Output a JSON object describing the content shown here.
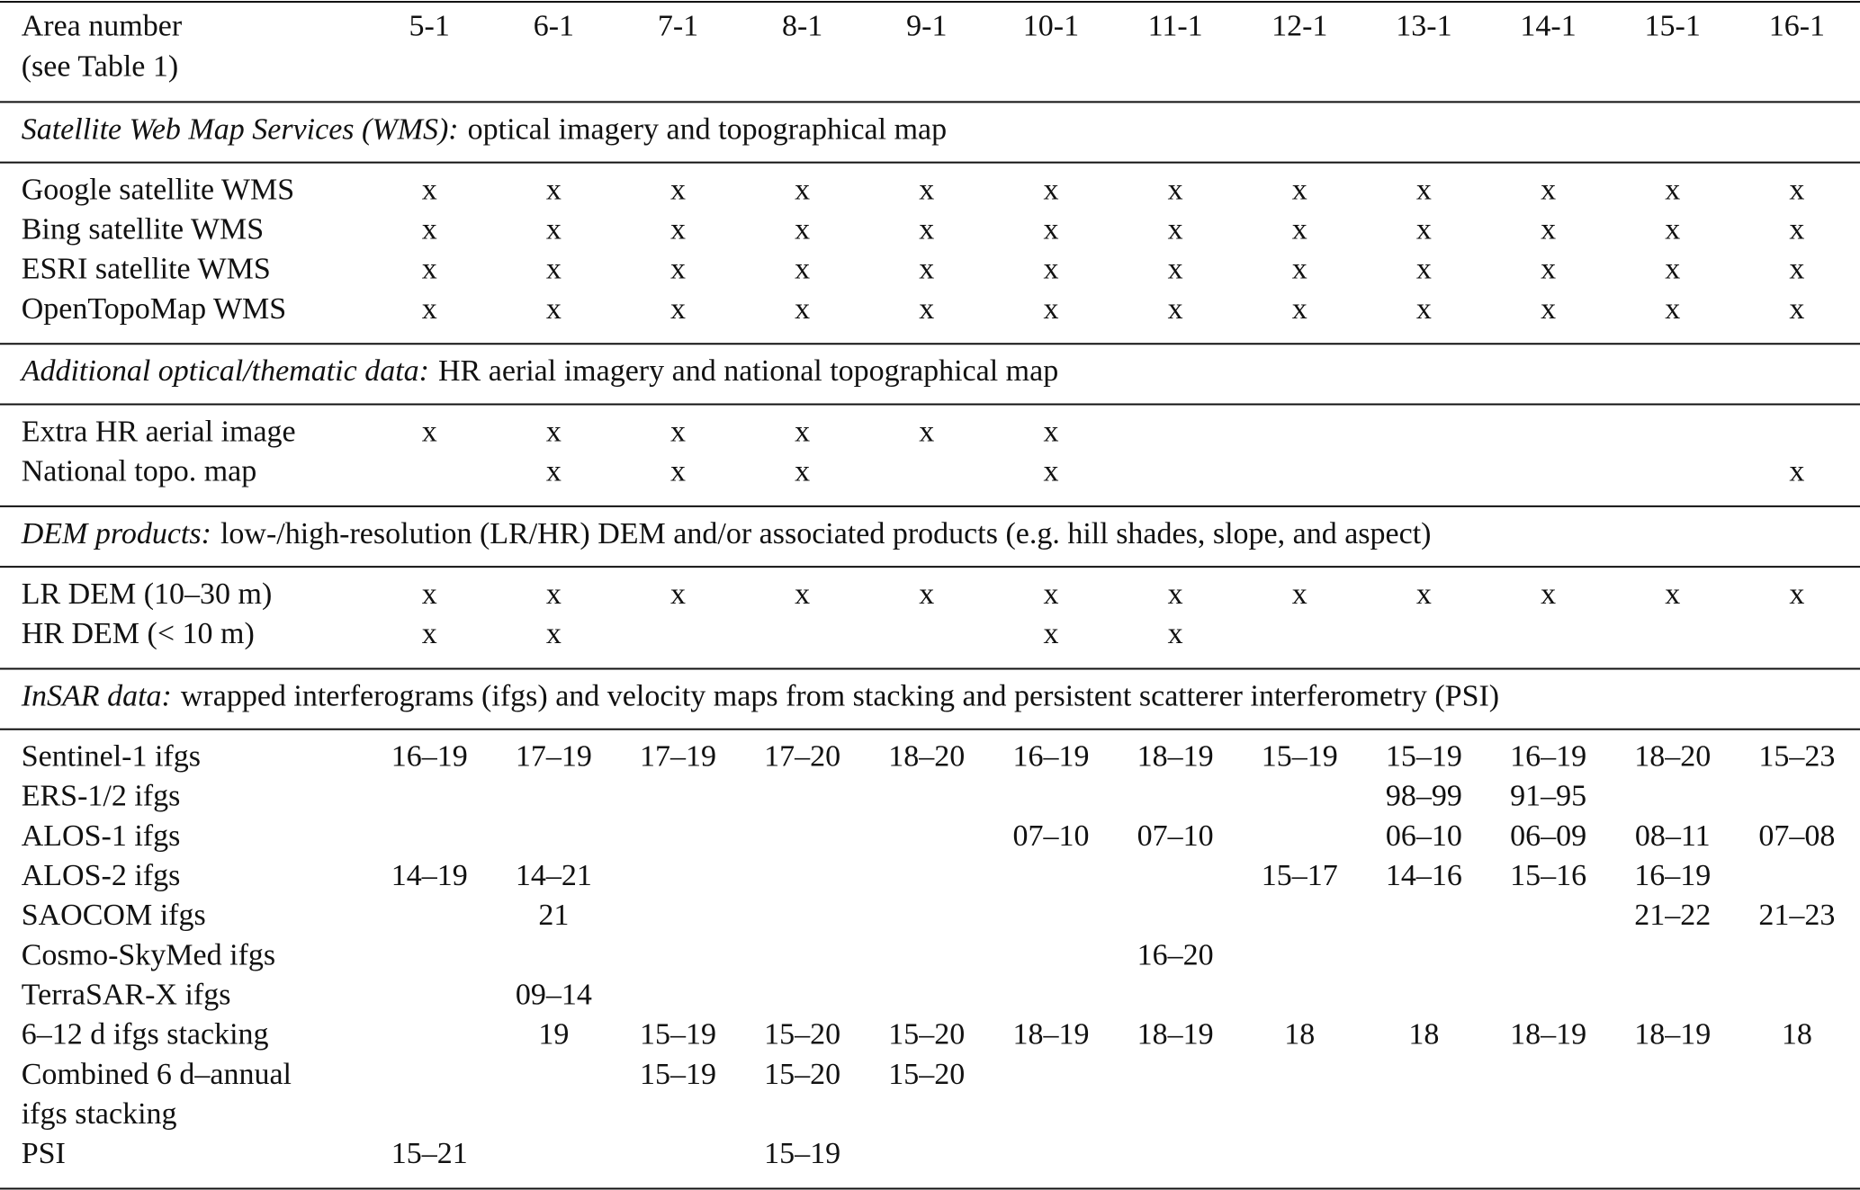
{
  "table": {
    "header": {
      "label": [
        "Area number",
        "(see Table 1)"
      ],
      "columns": [
        "5-1",
        "6-1",
        "7-1",
        "8-1",
        "9-1",
        "10-1",
        "11-1",
        "12-1",
        "13-1",
        "14-1",
        "15-1",
        "16-1"
      ]
    },
    "sections": [
      {
        "title_italic": "Satellite Web Map Services (WMS):",
        "title_rest": "optical imagery and topographical map",
        "rows": [
          {
            "label": "Google satellite WMS",
            "cells": [
              "x",
              "x",
              "x",
              "x",
              "x",
              "x",
              "x",
              "x",
              "x",
              "x",
              "x",
              "x"
            ]
          },
          {
            "label": "Bing satellite WMS",
            "cells": [
              "x",
              "x",
              "x",
              "x",
              "x",
              "x",
              "x",
              "x",
              "x",
              "x",
              "x",
              "x"
            ]
          },
          {
            "label": "ESRI satellite WMS",
            "cells": [
              "x",
              "x",
              "x",
              "x",
              "x",
              "x",
              "x",
              "x",
              "x",
              "x",
              "x",
              "x"
            ]
          },
          {
            "label": "OpenTopoMap WMS",
            "cells": [
              "x",
              "x",
              "x",
              "x",
              "x",
              "x",
              "x",
              "x",
              "x",
              "x",
              "x",
              "x"
            ]
          }
        ]
      },
      {
        "title_italic": "Additional optical/thematic data:",
        "title_rest": "HR aerial imagery and national topographical map",
        "rows": [
          {
            "label": "Extra HR aerial image",
            "cells": [
              "x",
              "x",
              "x",
              "x",
              "x",
              "x",
              null,
              null,
              null,
              null,
              null,
              null
            ]
          },
          {
            "label": "National topo. map",
            "cells": [
              null,
              "x",
              "x",
              "x",
              null,
              "x",
              null,
              null,
              null,
              null,
              null,
              "x"
            ]
          }
        ]
      },
      {
        "title_italic": "DEM products:",
        "title_rest": "low-/high-resolution (LR/HR) DEM and/or associated products (e.g. hill shades, slope, and aspect)",
        "rows": [
          {
            "label": "LR DEM (10–30 m)",
            "cells": [
              "x",
              "x",
              "x",
              "x",
              "x",
              "x",
              "x",
              "x",
              "x",
              "x",
              "x",
              "x"
            ]
          },
          {
            "label": "HR DEM (< 10 m)",
            "cells": [
              "x",
              "x",
              null,
              null,
              null,
              "x",
              "x",
              null,
              null,
              null,
              null,
              null
            ]
          }
        ]
      },
      {
        "title_italic": "InSAR data:",
        "title_rest": "wrapped interferograms (ifgs) and velocity maps from stacking and persistent scatterer interferometry (PSI)",
        "rows": [
          {
            "label": "Sentinel-1 ifgs",
            "cells": [
              "16–19",
              "17–19",
              "17–19",
              "17–20",
              "18–20",
              "16–19",
              "18–19",
              "15–19",
              "15–19",
              "16–19",
              "18–20",
              "15–23"
            ]
          },
          {
            "label": "ERS-1/2 ifgs",
            "cells": [
              null,
              null,
              null,
              null,
              null,
              null,
              null,
              null,
              "98–99",
              "91–95",
              null,
              null
            ]
          },
          {
            "label": "ALOS-1 ifgs",
            "cells": [
              null,
              null,
              null,
              null,
              null,
              "07–10",
              "07–10",
              null,
              "06–10",
              "06–09",
              "08–11",
              "07–08"
            ]
          },
          {
            "label": "ALOS-2 ifgs",
            "cells": [
              "14–19",
              "14–21",
              null,
              null,
              null,
              null,
              null,
              "15–17",
              "14–16",
              "15–16",
              "16–19",
              null
            ]
          },
          {
            "label": "SAOCOM ifgs",
            "cells": [
              null,
              "21",
              null,
              null,
              null,
              null,
              null,
              null,
              null,
              null,
              "21–22",
              "21–23"
            ]
          },
          {
            "label": "Cosmo-SkyMed ifgs",
            "cells": [
              null,
              null,
              null,
              null,
              null,
              null,
              "16–20",
              null,
              null,
              null,
              null,
              null
            ]
          },
          {
            "label": "TerraSAR-X ifgs",
            "cells": [
              null,
              "09–14",
              null,
              null,
              null,
              null,
              null,
              null,
              null,
              null,
              null,
              null
            ]
          },
          {
            "label": "6–12 d ifgs stacking",
            "cells": [
              null,
              "19",
              "15–19",
              "15–20",
              "15–20",
              "18–19",
              "18–19",
              "18",
              "18",
              "18–19",
              "18–19",
              "18"
            ]
          },
          {
            "label": [
              "Combined 6 d–annual",
              "ifgs stacking"
            ],
            "cells": [
              null,
              null,
              "15–19",
              "15–20",
              "15–20",
              null,
              null,
              null,
              null,
              null,
              null,
              null
            ]
          },
          {
            "label": "PSI",
            "cells": [
              "15–21",
              null,
              null,
              "15–19",
              null,
              null,
              null,
              null,
              null,
              null,
              null,
              null
            ]
          }
        ]
      }
    ]
  }
}
